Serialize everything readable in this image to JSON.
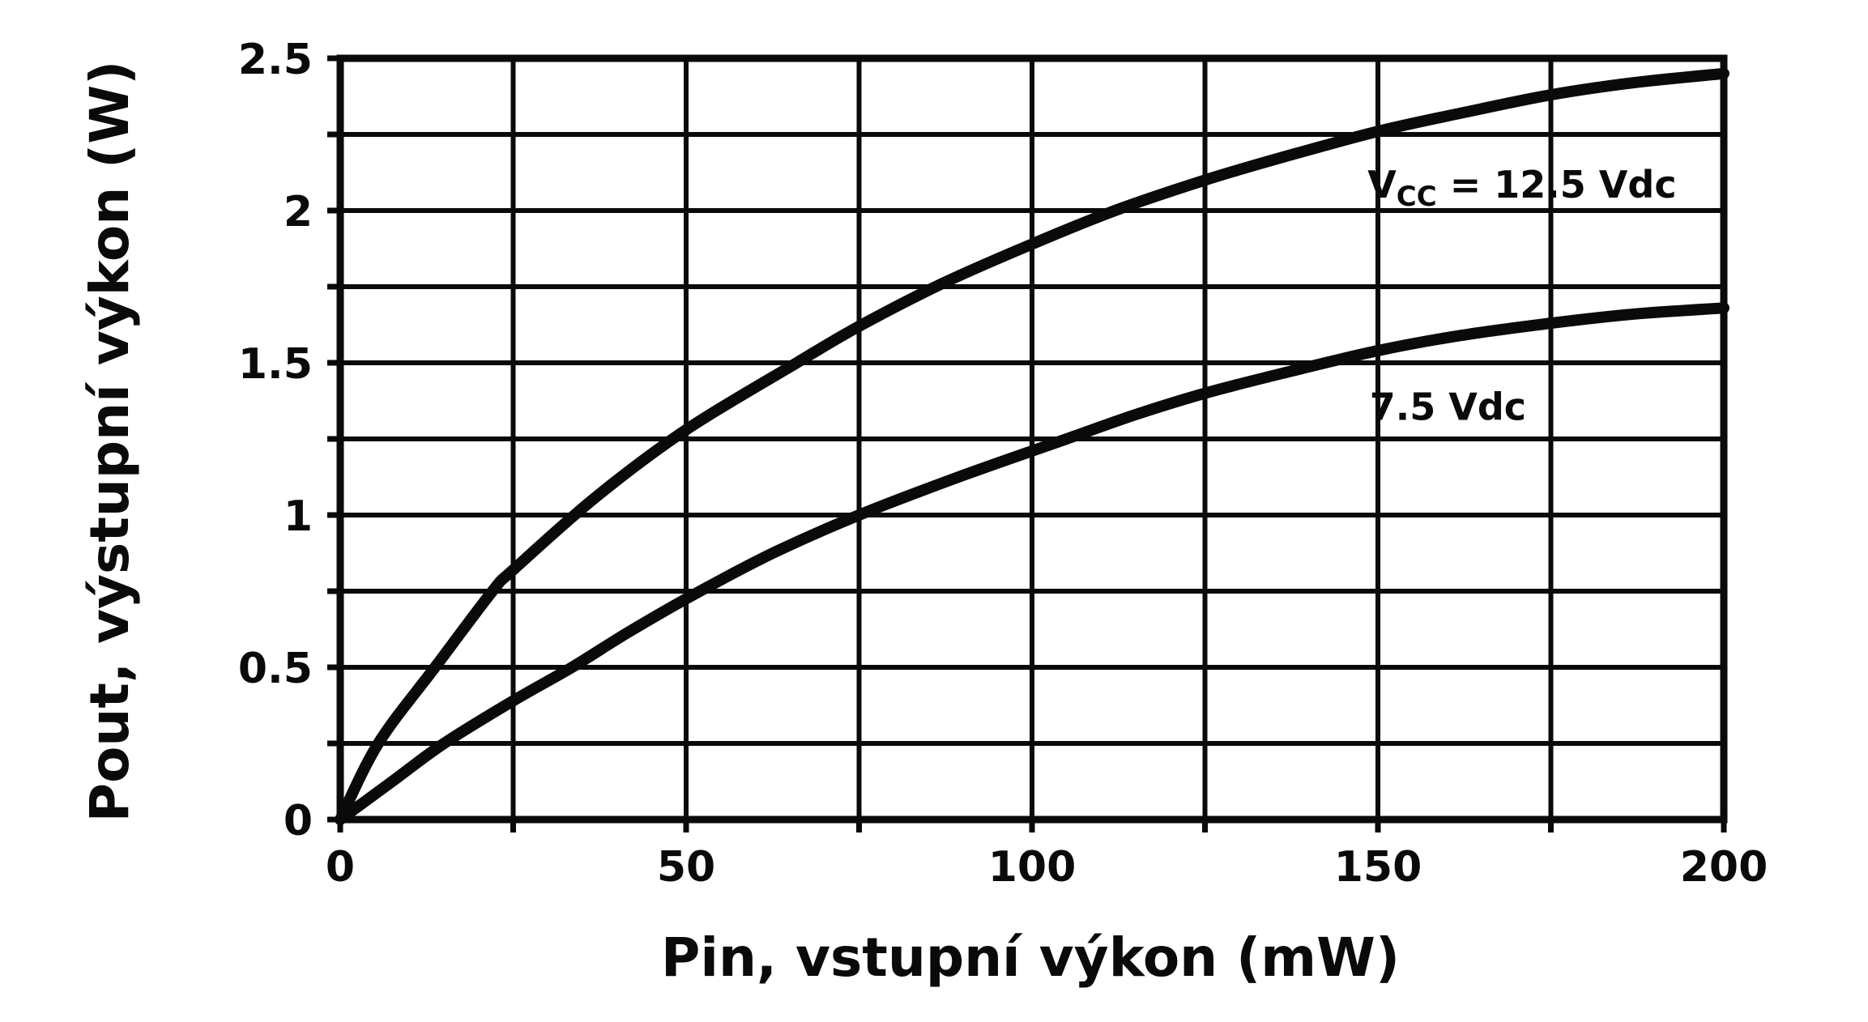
{
  "figure": {
    "background_color": "#ffffff",
    "ink_color": "#0a0a0a"
  },
  "chart_data": {
    "type": "line",
    "title": "",
    "xlabel": "Pin, vstupní výkon (mW)",
    "ylabel": "Pout, výstupní výkon (W)",
    "xlim": [
      0,
      200
    ],
    "ylim": [
      0,
      2.5
    ],
    "grid": "on",
    "x_grid_step": 25,
    "y_grid_step": 0.25,
    "x_major_ticks": [
      0,
      50,
      100,
      150,
      200
    ],
    "x_tick_labels": [
      "0",
      "50",
      "100",
      "150",
      "200"
    ],
    "y_major_ticks": [
      0,
      0.5,
      1,
      1.5,
      2,
      2.5
    ],
    "y_tick_labels": [
      "0",
      "0.5",
      "1",
      "1.5",
      "2",
      "2.5"
    ],
    "legend_position": "inline-annotations",
    "series": [
      {
        "name": "VCC = 12.5 Vdc",
        "label": {
          "main": "V",
          "sub": "CC",
          "rest": " = 12.5 Vdc",
          "anchor_x": 148.5,
          "anchor_y": 2.09
        },
        "points": [
          [
            0,
            0
          ],
          [
            5.5,
            0.25
          ],
          [
            13.7,
            0.5
          ],
          [
            22,
            0.75
          ],
          [
            25,
            0.82
          ],
          [
            37,
            1.06
          ],
          [
            50,
            1.28
          ],
          [
            66,
            1.5
          ],
          [
            75,
            1.62
          ],
          [
            87,
            1.76
          ],
          [
            100,
            1.89
          ],
          [
            112,
            2.0
          ],
          [
            125,
            2.1
          ],
          [
            137,
            2.18
          ],
          [
            150,
            2.26
          ],
          [
            162,
            2.32
          ],
          [
            175,
            2.38
          ],
          [
            187,
            2.42
          ],
          [
            200,
            2.45
          ]
        ]
      },
      {
        "name": "7.5 Vdc",
        "label": {
          "main": "7.5 Vdc",
          "sub": "",
          "rest": "",
          "anchor_x": 148.8,
          "anchor_y": 1.36
        },
        "points": [
          [
            0,
            0
          ],
          [
            7.5,
            0.125
          ],
          [
            15,
            0.25
          ],
          [
            25,
            0.39
          ],
          [
            33.5,
            0.5
          ],
          [
            42,
            0.62
          ],
          [
            52,
            0.75
          ],
          [
            63,
            0.88
          ],
          [
            75,
            1.0
          ],
          [
            90,
            1.13
          ],
          [
            105,
            1.25
          ],
          [
            115,
            1.33
          ],
          [
            125,
            1.4
          ],
          [
            137,
            1.47
          ],
          [
            150,
            1.54
          ],
          [
            162,
            1.59
          ],
          [
            175,
            1.63
          ],
          [
            187,
            1.66
          ],
          [
            200,
            1.68
          ]
        ]
      }
    ]
  }
}
